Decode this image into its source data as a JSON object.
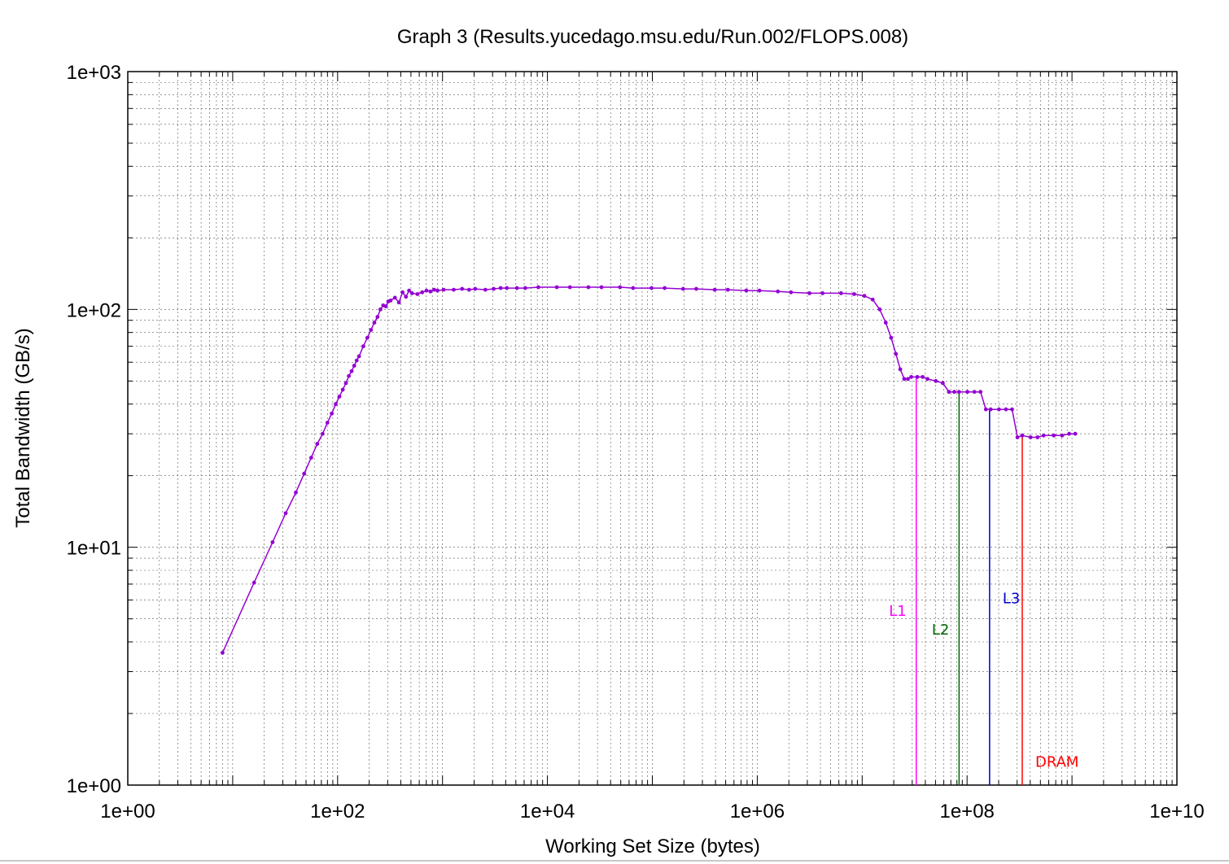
{
  "chart_data": {
    "type": "line",
    "title": "Graph 3 (Results.yucedago.msu.edu/Run.002/FLOPS.008)",
    "xlabel": "Working Set Size (bytes)",
    "ylabel": "Total Bandwidth (GB/s)",
    "xscale": "log",
    "yscale": "log",
    "xlim": [
      1,
      10000000000
    ],
    "ylim": [
      1,
      1000
    ],
    "grid": true,
    "x_tick_labels": [
      "1e+00",
      "1e+02",
      "1e+04",
      "1e+06",
      "1e+08",
      "1e+10"
    ],
    "y_tick_labels": [
      "1e+00",
      "1e+01",
      "1e+02",
      "1e+03"
    ],
    "series_color": "#9400d3",
    "series": [
      {
        "x": [
          8,
          16,
          24,
          32,
          40,
          48,
          56,
          64,
          72,
          80,
          88,
          96,
          104,
          112,
          120,
          128,
          136,
          144,
          152,
          160,
          176,
          192,
          208,
          224,
          240,
          256,
          272,
          288,
          304,
          320,
          352,
          384,
          416,
          448,
          480,
          512,
          576,
          640,
          704,
          768,
          832,
          896,
          1024,
          1280,
          1536,
          1792,
          2048,
          2560,
          3072,
          3584,
          4096,
          5120,
          6144,
          8192,
          12288,
          16384,
          24576,
          32768,
          49152,
          65536,
          98304,
          131072,
          196608,
          262144,
          393216,
          524288,
          786432,
          1048576,
          1572864,
          2097152,
          3145728,
          4194304,
          6291456,
          8388608,
          10485760,
          12582912,
          14680064,
          16777216,
          18874368,
          20971520,
          23068672,
          25165824,
          27262976,
          29360128,
          33554432,
          37748736,
          41943040,
          50331648,
          58720256,
          67108864,
          75497472,
          83886080,
          100663296,
          117440512,
          134217728,
          150994944,
          167772160,
          201326592,
          234881024,
          268435456,
          301989888,
          335544320,
          402653184,
          469762048,
          536870912,
          671088640,
          805306368,
          939524096,
          1073741824
        ],
        "y": [
          3.6,
          7.1,
          10.5,
          13.9,
          17.0,
          20.4,
          23.8,
          27.2,
          30.0,
          33.4,
          36.5,
          40.0,
          43.0,
          46.0,
          49.0,
          52.5,
          55.0,
          58.0,
          61.0,
          63.5,
          70.0,
          76.0,
          82.0,
          88.0,
          93.0,
          100.0,
          104.0,
          103.0,
          108.0,
          109.0,
          112.0,
          107.0,
          118.0,
          113.0,
          120.0,
          117.0,
          116.0,
          118.0,
          120.0,
          119.0,
          121.0,
          120.0,
          121.0,
          121.0,
          122.0,
          121.0,
          122.0,
          121.0,
          122.0,
          123.0,
          123.0,
          123.0,
          123.0,
          124.0,
          124.0,
          124.0,
          124.0,
          124.0,
          124.0,
          123.0,
          123.0,
          123.0,
          122.0,
          122.0,
          121.0,
          121.0,
          120.0,
          120.0,
          119.0,
          118.0,
          117.0,
          117.0,
          117.0,
          116.0,
          114.0,
          110.0,
          100.0,
          88.0,
          76.0,
          65.0,
          56.0,
          51.0,
          51.0,
          52.0,
          52.0,
          52.0,
          51.0,
          50.0,
          49.0,
          45.0,
          45.0,
          45.0,
          45.0,
          45.0,
          45.0,
          38.0,
          38.0,
          38.0,
          38.0,
          38.0,
          29.0,
          29.5,
          29.0,
          29.0,
          29.5,
          29.5,
          29.5,
          30.0,
          30.0
        ]
      }
    ],
    "markers": [
      {
        "label": "L1",
        "x": 32768000,
        "color": "#ff00ff",
        "label_y": 5.4
      },
      {
        "label": "L2",
        "x": 83886080,
        "color": "#006400",
        "label_y": 4.5
      },
      {
        "label": "L3",
        "x": 163840000,
        "color": "#0000cd",
        "label_y": 6.1
      },
      {
        "label": "DRAM",
        "x": 335544320,
        "color": "#ff0000",
        "label_y": 1.25
      }
    ]
  }
}
